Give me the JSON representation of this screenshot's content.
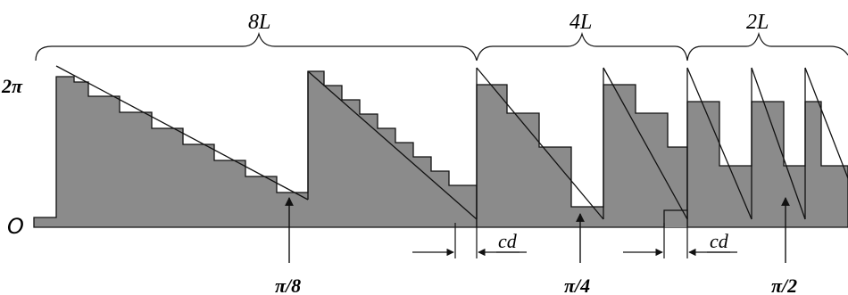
{
  "colors": {
    "fill": "#8b8b8b",
    "stroke": "#111111",
    "background": "#ffffff"
  },
  "period_labels": {
    "first": "8L",
    "second": "4L",
    "third": "2L"
  },
  "y_labels": {
    "top": "2π",
    "bottom": "O"
  },
  "phase_labels": {
    "first": "π/8",
    "second": "π/4",
    "third": "π/2"
  },
  "gap_labels": {
    "first": "cd",
    "second": "cd"
  }
}
